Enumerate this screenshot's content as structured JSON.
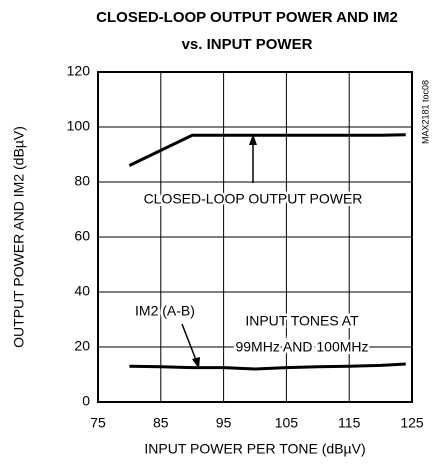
{
  "chart_data": {
    "type": "line",
    "title": [
      "CLOSED-LOOP OUTPUT POWER AND IM2",
      "vs. INPUT POWER"
    ],
    "xlabel": "INPUT POWER PER TONE (dBµV)",
    "ylabel": "OUTPUT POWER AND IM2 (dBµV)",
    "side_note": "MAX2181 toc08",
    "x": [
      80,
      85,
      90,
      95,
      100,
      105,
      110,
      115,
      120,
      124
    ],
    "series": [
      {
        "name": "CLOSED-LOOP OUTPUT POWER",
        "color": "#000000",
        "values": [
          86,
          91.5,
          97,
          97,
          97,
          97,
          97,
          97,
          97,
          97.2
        ]
      },
      {
        "name": "IM2 (A-B)",
        "color": "#000000",
        "values": [
          13,
          12.8,
          12.5,
          12.5,
          12,
          12.5,
          12.8,
          13,
          13.3,
          13.8
        ]
      }
    ],
    "annotations": [
      "INPUT TONES AT",
      "99MHz AND 100MHz"
    ],
    "xlim": [
      75,
      125
    ],
    "xticks": [
      75,
      85,
      95,
      105,
      115,
      125
    ],
    "ylim": [
      0,
      120
    ],
    "yticks": [
      0,
      20,
      40,
      60,
      80,
      100,
      120
    ],
    "grid": true
  }
}
